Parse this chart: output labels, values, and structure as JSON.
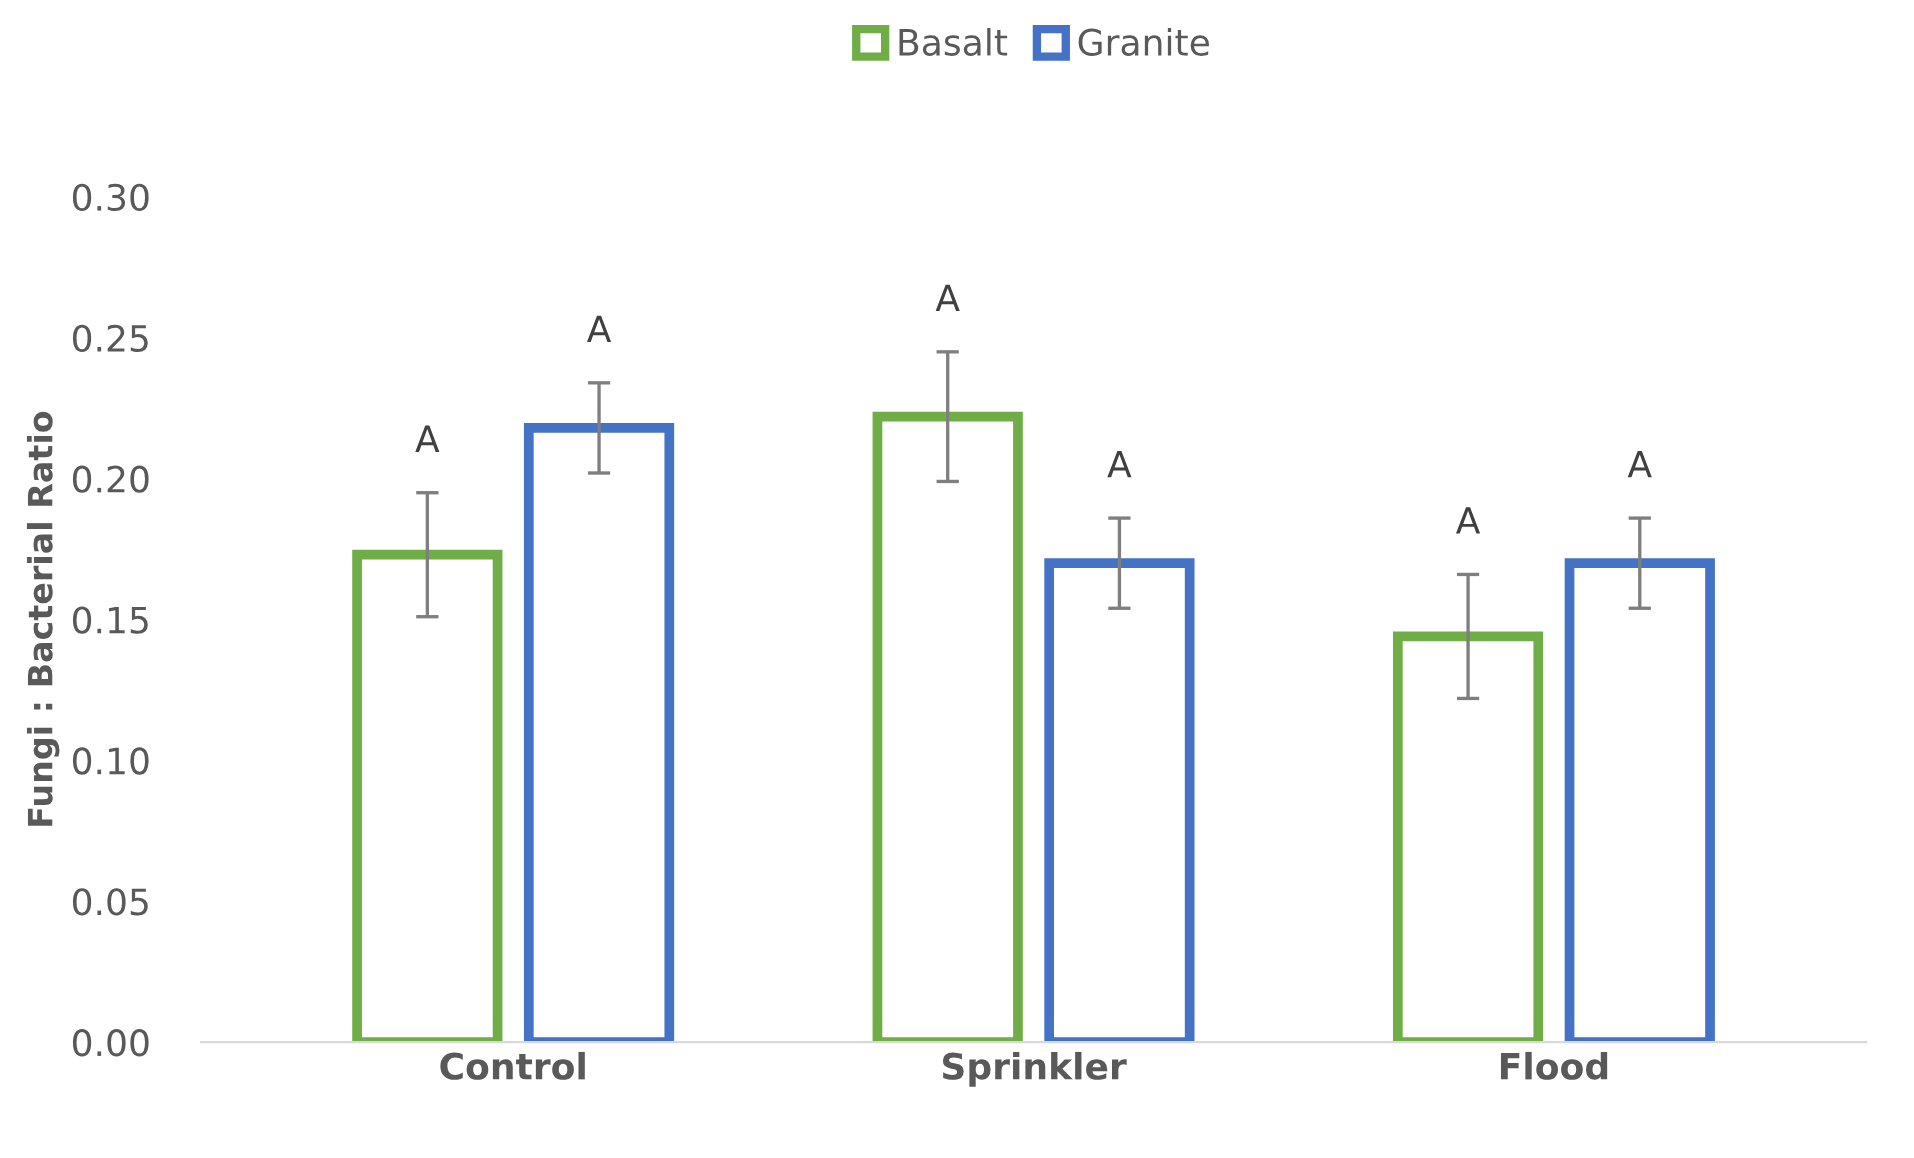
{
  "chart_data": {
    "type": "bar",
    "ylabel": "Fungi : Bacterial Ratio",
    "categories": [
      "Control",
      "Sprinkler",
      "Flood"
    ],
    "series": [
      {
        "name": "Basalt",
        "color": "#70ad47",
        "values": [
          0.173,
          0.222,
          0.144
        ],
        "errors": [
          0.022,
          0.023,
          0.022
        ],
        "value_labels": [
          "A",
          "A",
          "A"
        ]
      },
      {
        "name": "Granite",
        "color": "#4472c4",
        "values": [
          0.218,
          0.17,
          0.17
        ],
        "errors": [
          0.016,
          0.016,
          0.016
        ],
        "value_labels": [
          "A",
          "A",
          "A"
        ]
      }
    ],
    "ylim": [
      0,
      0.3
    ],
    "yticks": [
      {
        "value": 0,
        "label": "0.00"
      },
      {
        "value": 0.05,
        "label": "0.05"
      },
      {
        "value": 0.1,
        "label": "0.10"
      },
      {
        "value": 0.15,
        "label": "0.15"
      },
      {
        "value": 0.2,
        "label": "0.20"
      },
      {
        "value": 0.25,
        "label": "0.25"
      },
      {
        "value": 0.3,
        "label": "0.30"
      }
    ],
    "grid": false,
    "legend": "top"
  }
}
